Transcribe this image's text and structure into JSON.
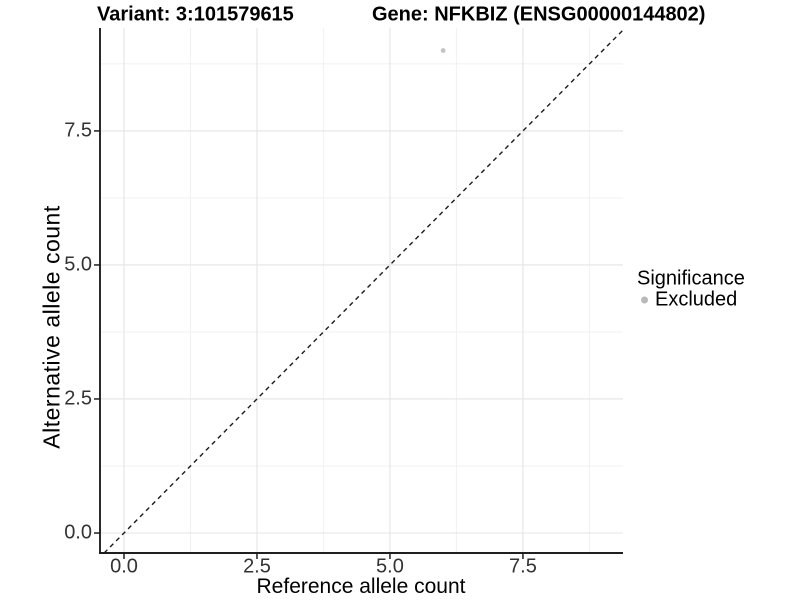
{
  "header": {
    "variant_title": "Variant: 3:101579615",
    "gene_title": "Gene: NFKBIZ (ENSG00000144802)"
  },
  "chart_data": {
    "type": "scatter",
    "title_left": "Variant: 3:101579615",
    "title_right": "Gene: NFKBIZ (ENSG00000144802)",
    "xlabel": "Reference allele count",
    "ylabel": "Alternative allele count",
    "xlim": [
      -0.451,
      9.381
    ],
    "ylim": [
      -0.373,
      9.42
    ],
    "x_ticks": [
      0.0,
      2.5,
      5.0,
      7.5
    ],
    "y_ticks": [
      0.0,
      2.5,
      5.0,
      7.5
    ],
    "x_tick_labels": [
      "0.0",
      "2.5",
      "5.0",
      "7.5"
    ],
    "y_tick_labels": [
      "0.0",
      "2.5",
      "5.0",
      "7.5"
    ],
    "minor_gridlines": [
      1.25,
      3.75,
      6.25,
      8.75
    ],
    "grid": true,
    "series": [
      {
        "name": "Excluded",
        "points": [
          {
            "x": 6,
            "y": 9
          }
        ],
        "color": "#c3c3c3",
        "marker": "circle",
        "marker_radius": 2.4
      }
    ],
    "reference_line": {
      "type": "identity-diagonal",
      "style": "dashed",
      "color": "#1a1a1a"
    },
    "legend": {
      "title": "Significance",
      "position": "right",
      "items": [
        {
          "label": "Excluded",
          "color": "#b9b9b9",
          "marker": "circle"
        }
      ]
    }
  },
  "colors": {
    "background": "#ffffff",
    "grid_major": "#e4e4e4",
    "grid_minor": "#f1f1f1",
    "axis_line": "#1f1f1f",
    "tick_mark": "#1f1f1f",
    "tick_text": "#333333"
  }
}
